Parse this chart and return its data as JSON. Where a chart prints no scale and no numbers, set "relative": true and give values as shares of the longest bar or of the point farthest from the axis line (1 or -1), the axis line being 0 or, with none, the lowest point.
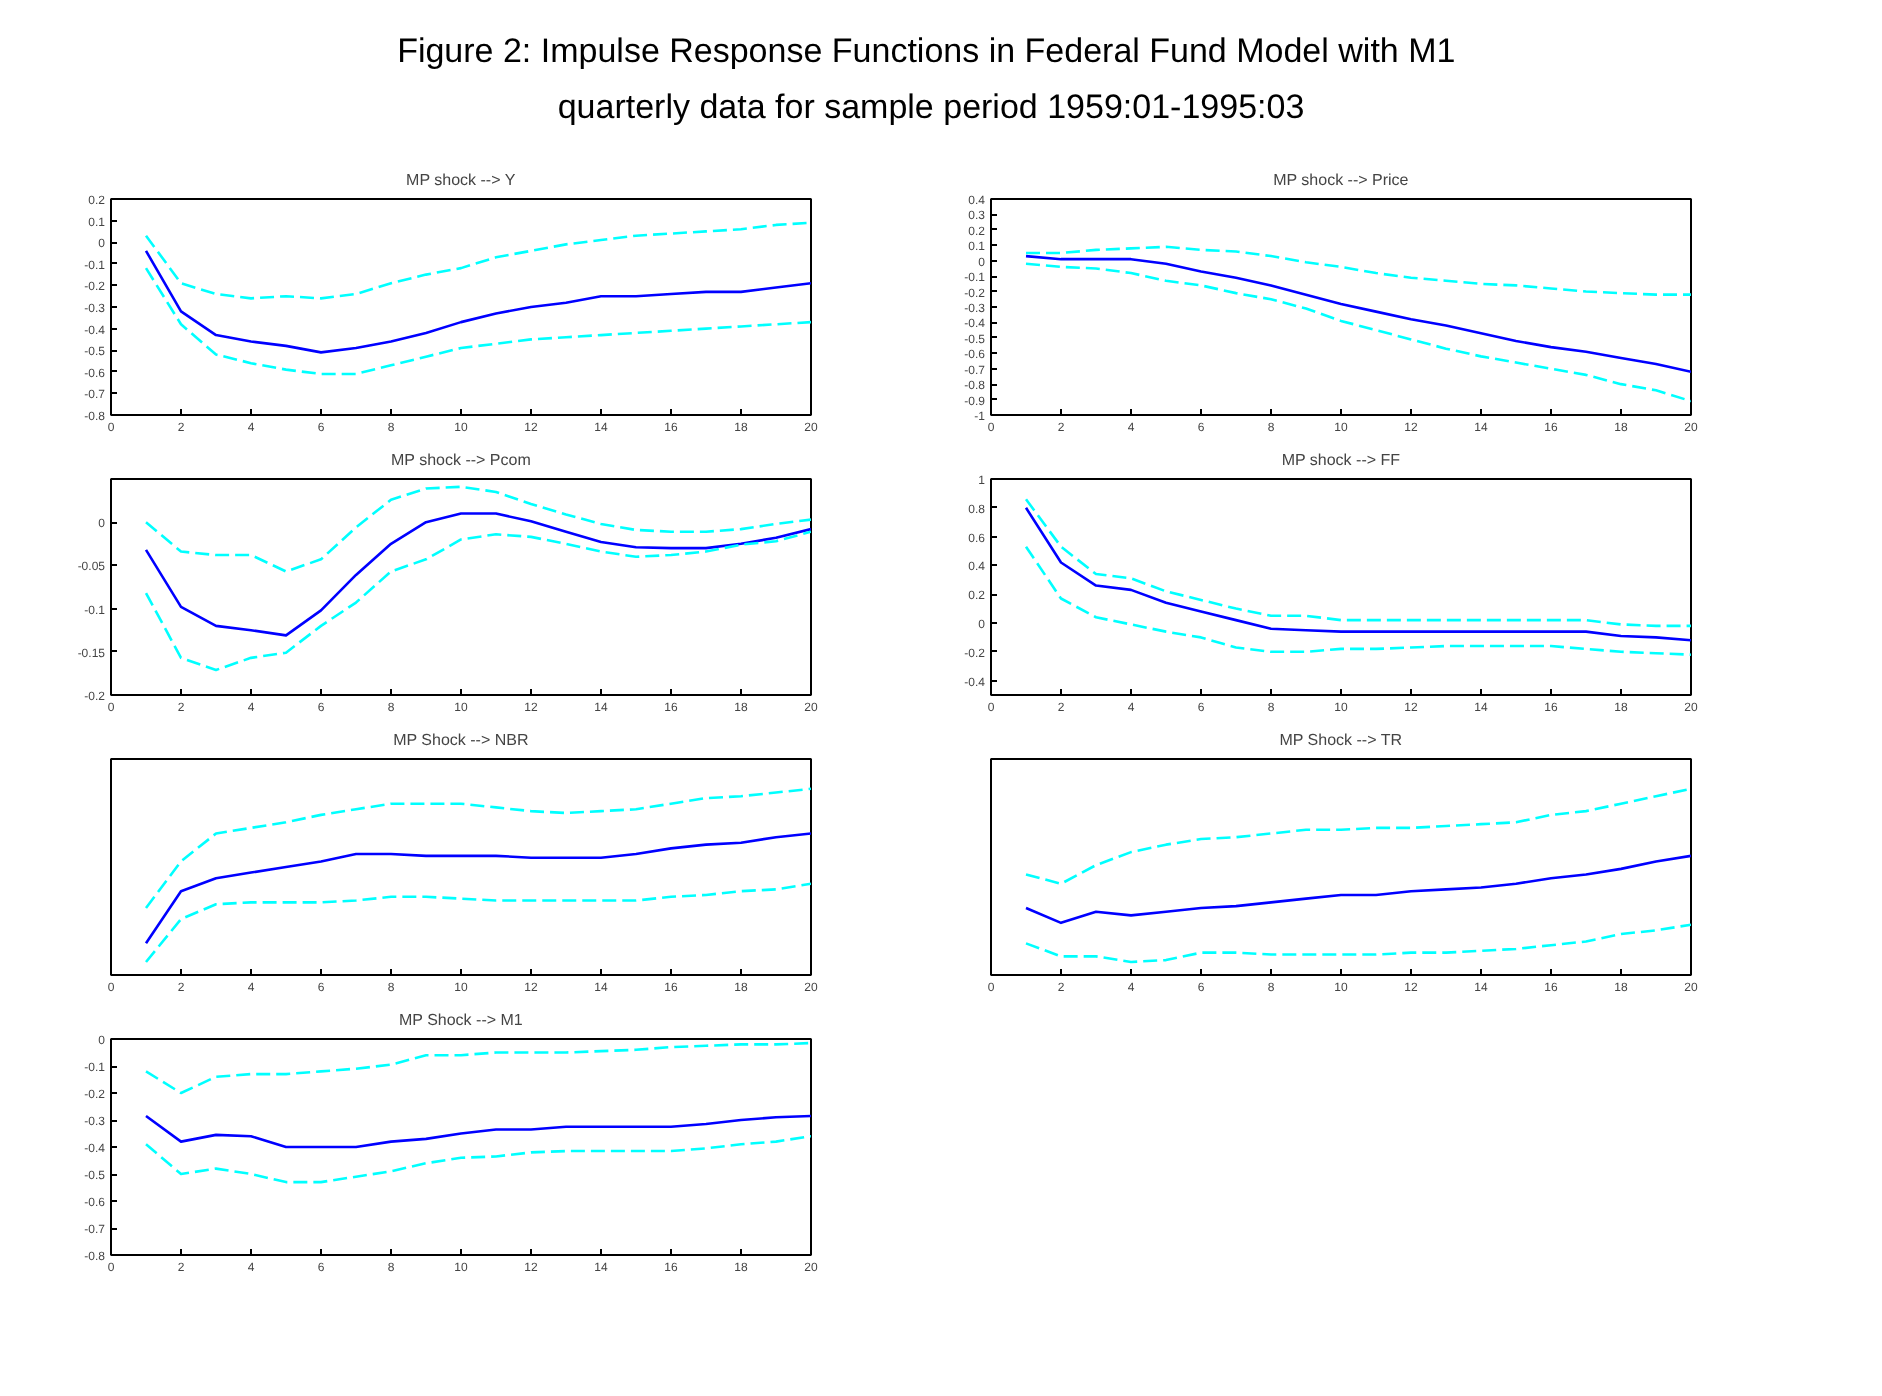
{
  "chart_data": [
    {
      "type": "other",
      "title": "Figure 2:  Impulse Response Functions in Federal Fund Model with M1",
      "subtitle": "quarterly data for sample period 1959:01-1995:03"
    },
    {
      "type": "line",
      "title": "MP shock --> Y",
      "x": [
        1,
        2,
        3,
        4,
        5,
        6,
        7,
        8,
        9,
        10,
        11,
        12,
        13,
        14,
        15,
        16,
        17,
        18,
        19,
        20
      ],
      "xlim": [
        0,
        20
      ],
      "xticks": [
        0,
        2,
        4,
        6,
        8,
        10,
        12,
        14,
        16,
        18,
        20
      ],
      "ylim": [
        -0.8,
        0.2
      ],
      "yticks": [
        -0.8,
        -0.7,
        -0.6,
        -0.5,
        -0.4,
        -0.3,
        -0.2,
        -0.1,
        0,
        0.1,
        0.2
      ],
      "series": [
        {
          "color": "#0000ff",
          "line_style": "solid",
          "values": [
            -0.04,
            -0.32,
            -0.43,
            -0.46,
            -0.48,
            -0.51,
            -0.49,
            -0.46,
            -0.42,
            -0.37,
            -0.33,
            -0.3,
            -0.28,
            -0.25,
            -0.25,
            -0.24,
            -0.23,
            -0.23,
            -0.21,
            -0.19
          ]
        },
        {
          "color": "#00ffff",
          "line_style": "dashed",
          "values": [
            0.03,
            -0.19,
            -0.24,
            -0.26,
            -0.25,
            -0.26,
            -0.24,
            -0.19,
            -0.15,
            -0.12,
            -0.07,
            -0.04,
            -0.01,
            0.01,
            0.03,
            0.04,
            0.05,
            0.06,
            0.08,
            0.09
          ]
        },
        {
          "color": "#00ffff",
          "line_style": "dashed",
          "values": [
            -0.12,
            -0.38,
            -0.52,
            -0.56,
            -0.59,
            -0.61,
            -0.61,
            -0.57,
            -0.53,
            -0.49,
            -0.47,
            -0.45,
            -0.44,
            -0.43,
            -0.42,
            -0.41,
            -0.4,
            -0.39,
            -0.38,
            -0.37
          ]
        }
      ]
    },
    {
      "type": "line",
      "title": "MP shock --> Price",
      "x": [
        1,
        2,
        3,
        4,
        5,
        6,
        7,
        8,
        9,
        10,
        11,
        12,
        13,
        14,
        15,
        16,
        17,
        18,
        19,
        20
      ],
      "xlim": [
        0,
        20
      ],
      "xticks": [
        0,
        2,
        4,
        6,
        8,
        10,
        12,
        14,
        16,
        18,
        20
      ],
      "ylim": [
        -1,
        0.4
      ],
      "yticks": [
        -1,
        -0.9,
        -0.8,
        -0.7,
        -0.6,
        -0.5,
        -0.4,
        -0.3,
        -0.2,
        -0.1,
        0,
        0.1,
        0.2,
        0.3,
        0.4
      ],
      "series": [
        {
          "color": "#0000ff",
          "line_style": "solid",
          "values": [
            0.03,
            0.01,
            0.01,
            0.01,
            -0.02,
            -0.07,
            -0.11,
            -0.16,
            -0.22,
            -0.28,
            -0.33,
            -0.38,
            -0.42,
            -0.47,
            -0.52,
            -0.56,
            -0.59,
            -0.63,
            -0.67,
            -0.72
          ]
        },
        {
          "color": "#00ffff",
          "line_style": "dashed",
          "values": [
            0.05,
            0.05,
            0.07,
            0.08,
            0.09,
            0.07,
            0.06,
            0.03,
            -0.01,
            -0.04,
            -0.08,
            -0.11,
            -0.13,
            -0.15,
            -0.16,
            -0.18,
            -0.2,
            -0.21,
            -0.22,
            -0.22
          ]
        },
        {
          "color": "#00ffff",
          "line_style": "dashed",
          "values": [
            -0.02,
            -0.04,
            -0.05,
            -0.08,
            -0.13,
            -0.16,
            -0.21,
            -0.25,
            -0.31,
            -0.39,
            -0.45,
            -0.51,
            -0.57,
            -0.62,
            -0.66,
            -0.7,
            -0.74,
            -0.8,
            -0.84,
            -0.91
          ]
        }
      ]
    },
    {
      "type": "line",
      "title": "MP shock --> Pcom",
      "x": [
        1,
        2,
        3,
        4,
        5,
        6,
        7,
        8,
        9,
        10,
        11,
        12,
        13,
        14,
        15,
        16,
        17,
        18,
        19,
        20
      ],
      "xlim": [
        0,
        20
      ],
      "xticks": [
        0,
        2,
        4,
        6,
        8,
        10,
        12,
        14,
        16,
        18,
        20
      ],
      "ylim": [
        -0.2,
        0.05
      ],
      "yticks": [
        -0.2,
        -0.15,
        -0.1,
        -0.05,
        0
      ],
      "series": [
        {
          "color": "#0000ff",
          "line_style": "solid",
          "values": [
            -0.032,
            -0.098,
            -0.12,
            -0.125,
            -0.131,
            -0.102,
            -0.061,
            -0.025,
            0,
            0.01,
            0.01,
            0.001,
            -0.011,
            -0.023,
            -0.029,
            -0.03,
            -0.03,
            -0.025,
            -0.018,
            -0.008
          ]
        },
        {
          "color": "#00ffff",
          "line_style": "dashed",
          "values": [
            0,
            -0.034,
            -0.038,
            -0.038,
            -0.057,
            -0.043,
            -0.006,
            0.026,
            0.039,
            0.041,
            0.035,
            0.021,
            0.009,
            -0.002,
            -0.009,
            -0.011,
            -0.011,
            -0.008,
            -0.002,
            0.003
          ]
        },
        {
          "color": "#00ffff",
          "line_style": "dashed",
          "values": [
            -0.082,
            -0.157,
            -0.171,
            -0.157,
            -0.151,
            -0.12,
            -0.093,
            -0.057,
            -0.043,
            -0.02,
            -0.014,
            -0.017,
            -0.025,
            -0.034,
            -0.04,
            -0.038,
            -0.034,
            -0.026,
            -0.022,
            -0.011
          ]
        }
      ]
    },
    {
      "type": "line",
      "title": "MP shock --> FF",
      "x": [
        1,
        2,
        3,
        4,
        5,
        6,
        7,
        8,
        9,
        10,
        11,
        12,
        13,
        14,
        15,
        16,
        17,
        18,
        19,
        20
      ],
      "xlim": [
        0,
        20
      ],
      "xticks": [
        0,
        2,
        4,
        6,
        8,
        10,
        12,
        14,
        16,
        18,
        20
      ],
      "ylim": [
        -0.5,
        1
      ],
      "yticks": [
        -0.4,
        -0.2,
        0,
        0.2,
        0.4,
        0.6,
        0.8,
        1
      ],
      "series": [
        {
          "color": "#0000ff",
          "line_style": "solid",
          "values": [
            0.8,
            0.42,
            0.26,
            0.23,
            0.14,
            0.08,
            0.02,
            -0.04,
            -0.05,
            -0.06,
            -0.06,
            -0.06,
            -0.06,
            -0.06,
            -0.06,
            -0.06,
            -0.06,
            -0.09,
            -0.1,
            -0.12
          ]
        },
        {
          "color": "#00ffff",
          "line_style": "dashed",
          "values": [
            0.86,
            0.53,
            0.34,
            0.31,
            0.22,
            0.16,
            0.1,
            0.05,
            0.05,
            0.02,
            0.02,
            0.02,
            0.02,
            0.02,
            0.02,
            0.02,
            0.02,
            -0.01,
            -0.02,
            -0.02
          ]
        },
        {
          "color": "#00ffff",
          "line_style": "dashed",
          "values": [
            0.53,
            0.17,
            0.04,
            -0.01,
            -0.06,
            -0.1,
            -0.17,
            -0.2,
            -0.2,
            -0.18,
            -0.18,
            -0.17,
            -0.16,
            -0.16,
            -0.16,
            -0.16,
            -0.18,
            -0.2,
            -0.21,
            -0.22
          ]
        }
      ]
    },
    {
      "type": "line",
      "title": "MP Shock --> NBR",
      "relative": true,
      "x": [
        1,
        2,
        3,
        4,
        5,
        6,
        7,
        8,
        9,
        10,
        11,
        12,
        13,
        14,
        15,
        16,
        17,
        18,
        19,
        20
      ],
      "xlim": [
        0,
        20
      ],
      "xticks": [
        0,
        2,
        4,
        6,
        8,
        10,
        12,
        14,
        16,
        18,
        20
      ],
      "series": [
        {
          "color": "#0000ff",
          "line_style": "solid",
          "values": [
            0.17,
            0.45,
            0.52,
            0.55,
            0.58,
            0.61,
            0.65,
            0.65,
            0.64,
            0.64,
            0.64,
            0.63,
            0.63,
            0.63,
            0.65,
            0.68,
            0.7,
            0.71,
            0.74,
            0.76
          ]
        },
        {
          "color": "#00ffff",
          "line_style": "dashed",
          "values": [
            0.36,
            0.61,
            0.76,
            0.79,
            0.82,
            0.86,
            0.89,
            0.92,
            0.92,
            0.92,
            0.9,
            0.88,
            0.87,
            0.88,
            0.89,
            0.92,
            0.95,
            0.96,
            0.98,
            1
          ]
        },
        {
          "color": "#00ffff",
          "line_style": "dashed",
          "values": [
            0.07,
            0.3,
            0.38,
            0.39,
            0.39,
            0.39,
            0.4,
            0.42,
            0.42,
            0.41,
            0.4,
            0.4,
            0.4,
            0.4,
            0.4,
            0.42,
            0.43,
            0.45,
            0.46,
            0.49
          ]
        }
      ]
    },
    {
      "type": "line",
      "title": "MP Shock --> TR",
      "relative": true,
      "x": [
        1,
        2,
        3,
        4,
        5,
        6,
        7,
        8,
        9,
        10,
        11,
        12,
        13,
        14,
        15,
        16,
        17,
        18,
        19,
        20
      ],
      "xlim": [
        0,
        20
      ],
      "xticks": [
        0,
        2,
        4,
        6,
        8,
        10,
        12,
        14,
        16,
        18,
        20
      ],
      "series": [
        {
          "color": "#0000ff",
          "line_style": "solid",
          "values": [
            0.36,
            0.28,
            0.34,
            0.32,
            0.34,
            0.36,
            0.37,
            0.39,
            0.41,
            0.43,
            0.43,
            0.45,
            0.46,
            0.47,
            0.49,
            0.52,
            0.54,
            0.57,
            0.61,
            0.64
          ]
        },
        {
          "color": "#00ffff",
          "line_style": "dashed",
          "values": [
            0.54,
            0.49,
            0.59,
            0.66,
            0.7,
            0.73,
            0.74,
            0.76,
            0.78,
            0.78,
            0.79,
            0.79,
            0.8,
            0.81,
            0.82,
            0.86,
            0.88,
            0.92,
            0.96,
            1
          ]
        },
        {
          "color": "#00ffff",
          "line_style": "dashed",
          "values": [
            0.17,
            0.1,
            0.1,
            0.07,
            0.08,
            0.12,
            0.12,
            0.11,
            0.11,
            0.11,
            0.11,
            0.12,
            0.12,
            0.13,
            0.14,
            0.16,
            0.18,
            0.22,
            0.24,
            0.27
          ]
        }
      ]
    },
    {
      "type": "line",
      "title": "MP Shock --> M1",
      "x": [
        1,
        2,
        3,
        4,
        5,
        6,
        7,
        8,
        9,
        10,
        11,
        12,
        13,
        14,
        15,
        16,
        17,
        18,
        19,
        20
      ],
      "xlim": [
        0,
        20
      ],
      "xticks": [
        0,
        2,
        4,
        6,
        8,
        10,
        12,
        14,
        16,
        18,
        20
      ],
      "ylim": [
        -0.8,
        0
      ],
      "yticks": [
        -0.8,
        -0.7,
        -0.6,
        -0.5,
        -0.4,
        -0.3,
        -0.2,
        -0.1,
        0
      ],
      "series": [
        {
          "color": "#0000ff",
          "line_style": "solid",
          "values": [
            -0.285,
            -0.38,
            -0.355,
            -0.36,
            -0.4,
            -0.4,
            -0.4,
            -0.38,
            -0.37,
            -0.35,
            -0.335,
            -0.335,
            -0.325,
            -0.325,
            -0.325,
            -0.325,
            -0.315,
            -0.3,
            -0.29,
            -0.285
          ]
        },
        {
          "color": "#00ffff",
          "line_style": "dashed",
          "values": [
            -0.12,
            -0.2,
            -0.14,
            -0.13,
            -0.13,
            -0.12,
            -0.11,
            -0.095,
            -0.06,
            -0.06,
            -0.05,
            -0.05,
            -0.05,
            -0.045,
            -0.04,
            -0.03,
            -0.025,
            -0.02,
            -0.02,
            -0.015
          ]
        },
        {
          "color": "#00ffff",
          "line_style": "dashed",
          "values": [
            -0.39,
            -0.5,
            -0.48,
            -0.5,
            -0.53,
            -0.53,
            -0.51,
            -0.49,
            -0.46,
            -0.44,
            -0.435,
            -0.42,
            -0.415,
            -0.415,
            -0.415,
            -0.415,
            -0.405,
            -0.39,
            -0.38,
            -0.36
          ]
        }
      ]
    }
  ]
}
